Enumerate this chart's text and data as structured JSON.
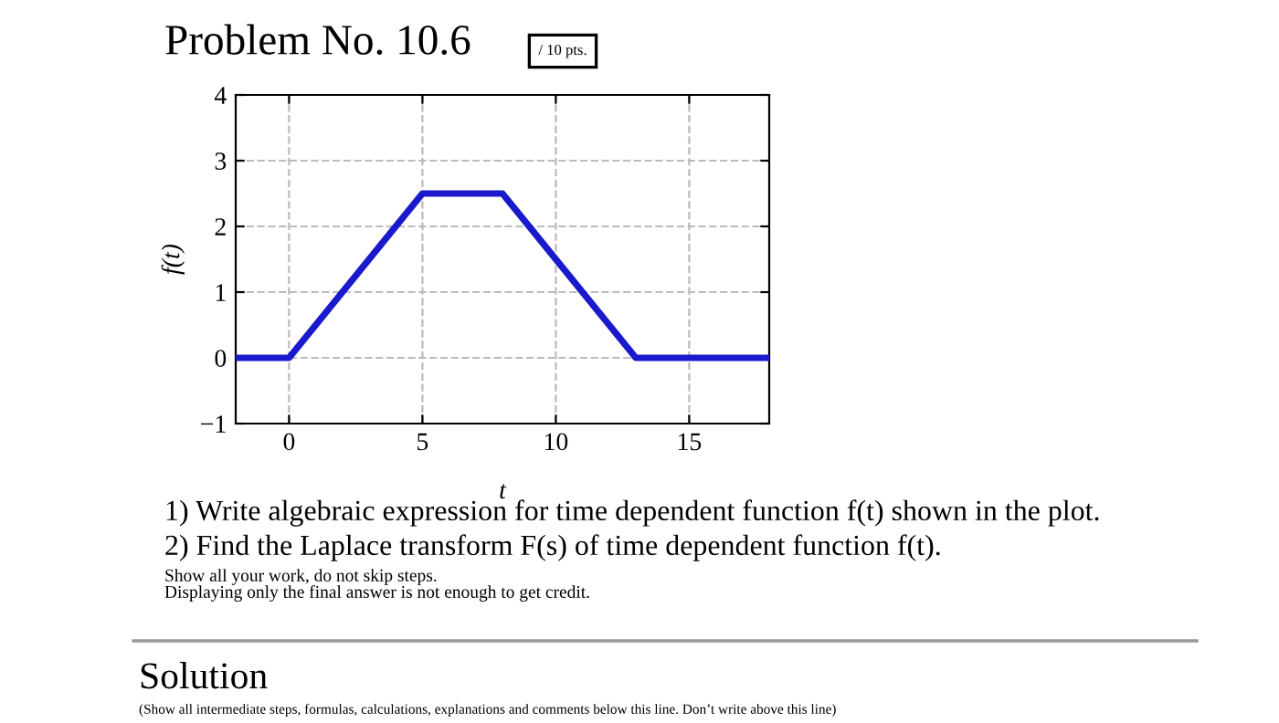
{
  "chart_data": {
    "type": "line",
    "title": "Problem No. 10.6",
    "xlabel": "t",
    "ylabel": "f(t)",
    "x": [
      -2,
      0,
      5,
      8,
      13,
      18
    ],
    "series": [
      {
        "color": "#1a1acc",
        "values": [
          0,
          0,
          2.5,
          2.5,
          0,
          0
        ]
      }
    ],
    "xlim": [
      -2,
      18
    ],
    "ylim": [
      -1,
      4
    ],
    "xticks": [
      0,
      5,
      10,
      15
    ],
    "yticks": [
      {
        "value": -1,
        "label": "−1"
      },
      0,
      1,
      2,
      3,
      4
    ],
    "grid": true,
    "line_style": "solid",
    "marker": "none",
    "annotations": [
      "/ 10 pts.",
      "1) Write algebraic expression for time dependent function f(t) shown in the plot.",
      "2) Find the Laplace transform F(s) of time dependent function f(t).",
      "Show all your work, do not skip steps.",
      "Displaying only the final answer is not enough to get credit.",
      "Solution",
      "(Show all intermediate steps, formulas, calculations, explanations and comments below this line. Don’t write above this line)"
    ]
  }
}
